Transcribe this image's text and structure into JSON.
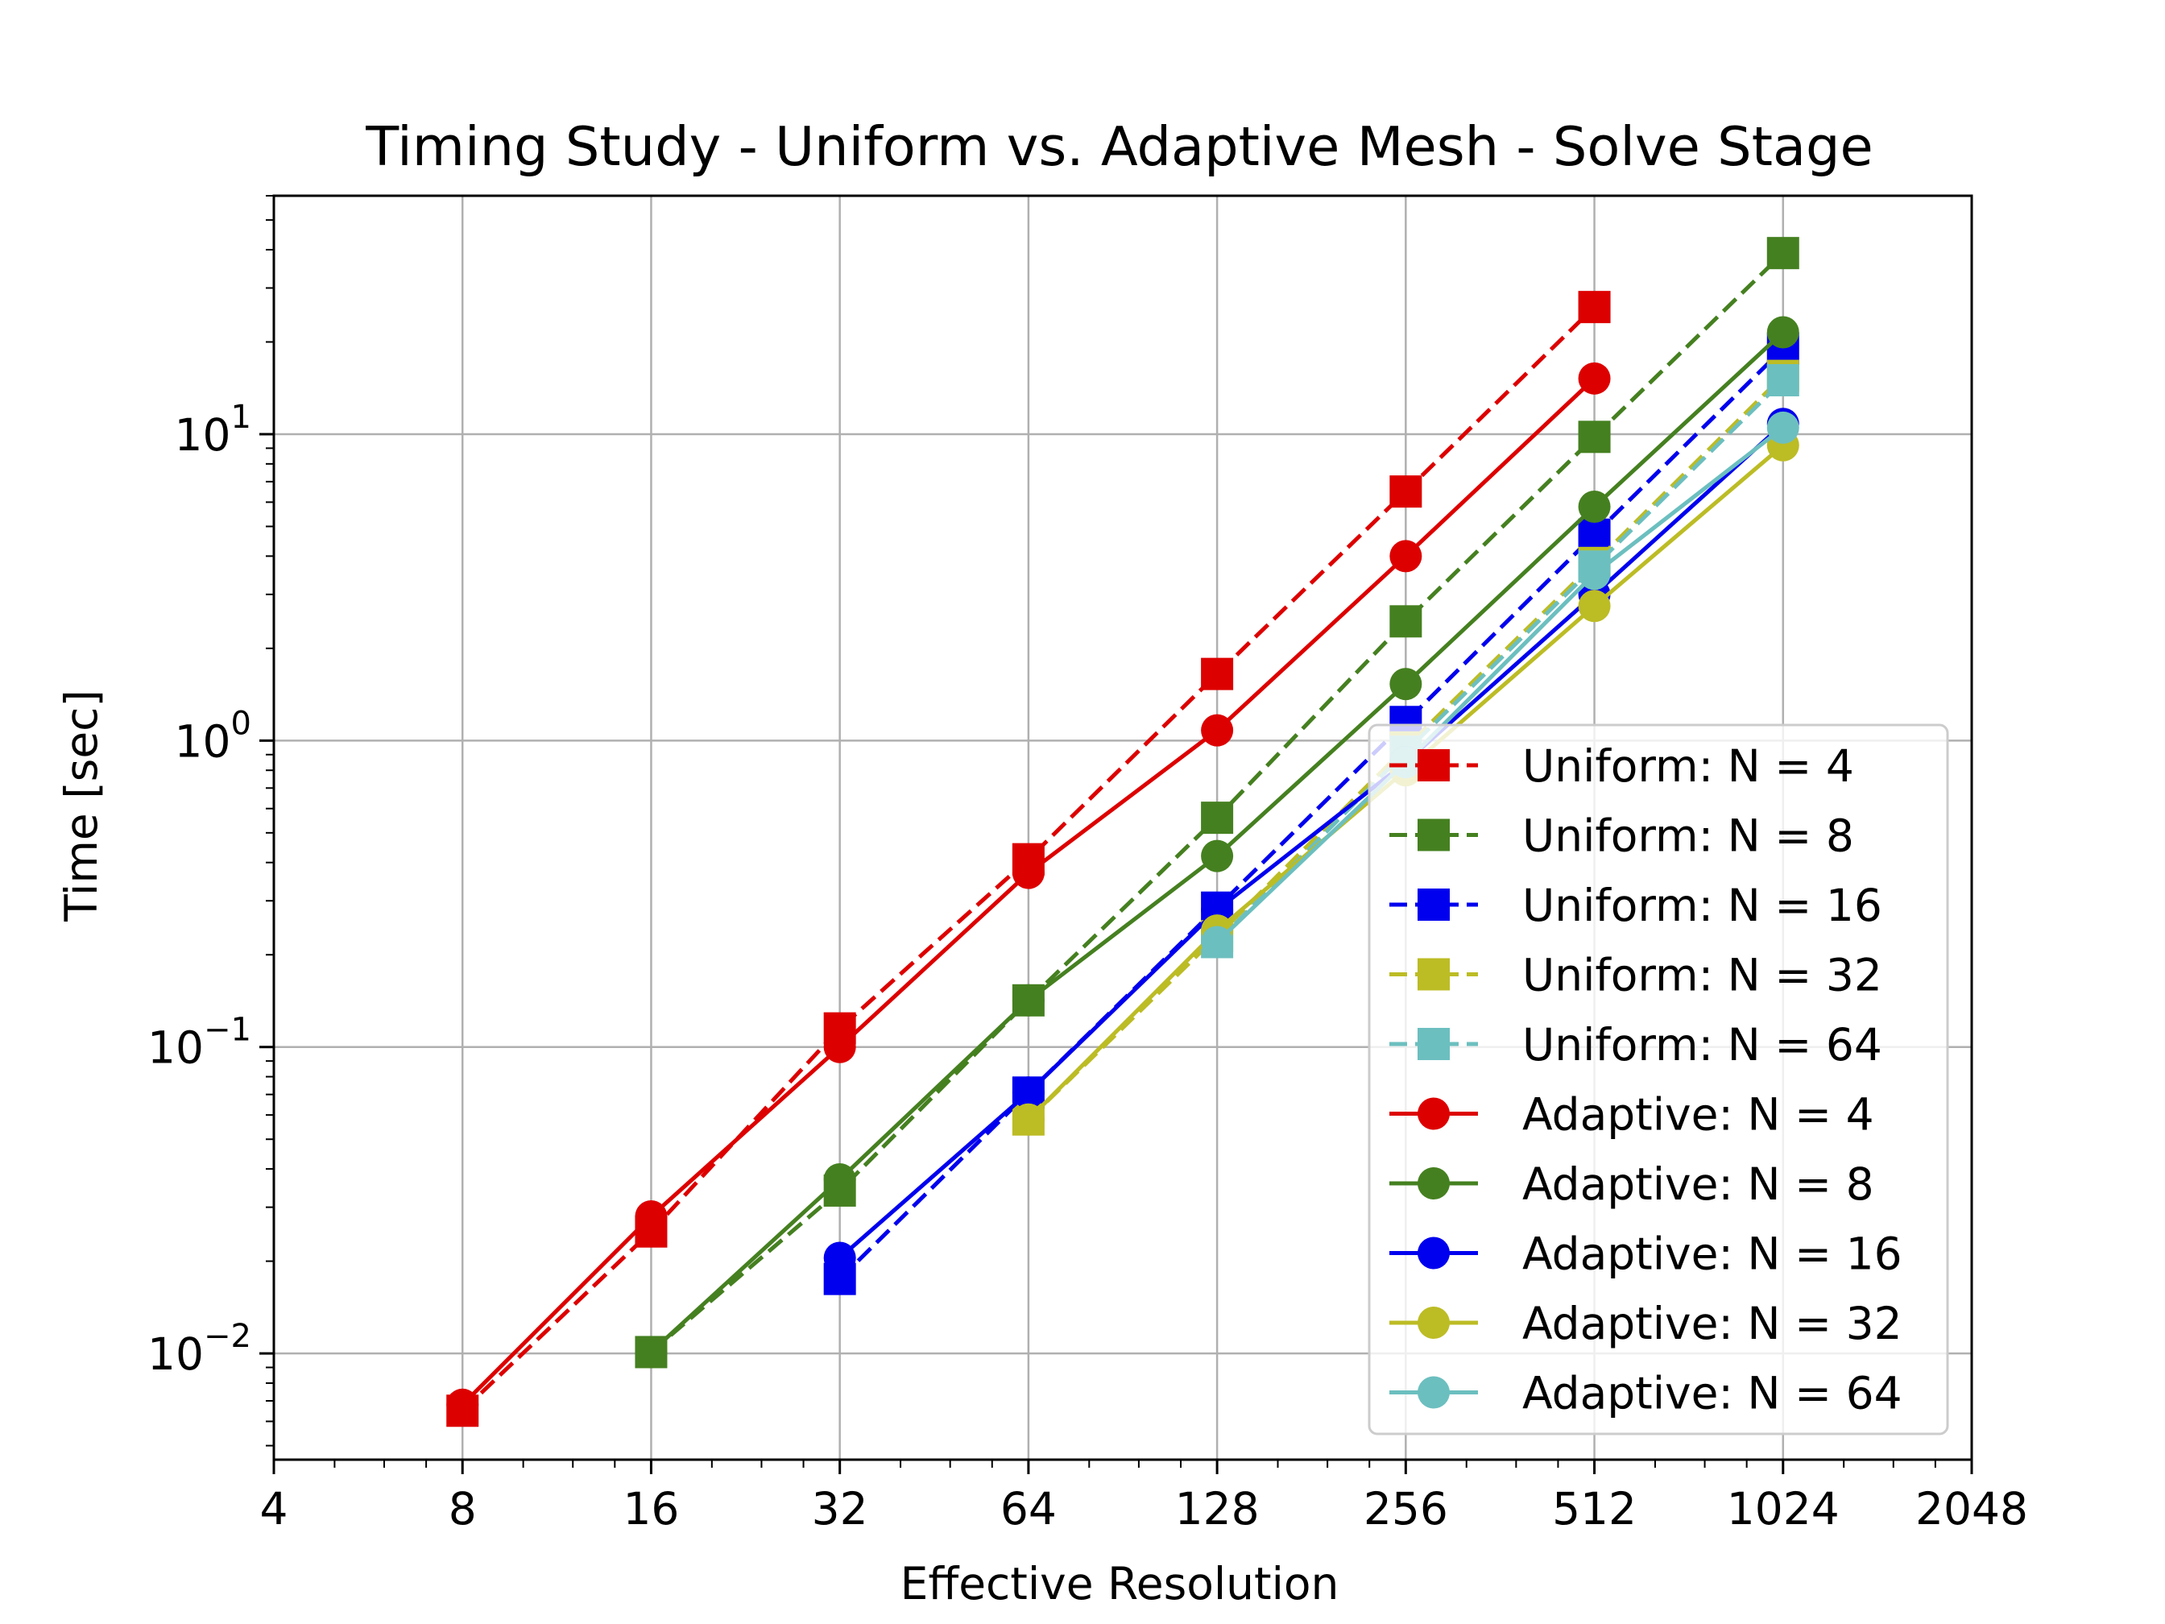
{
  "chart_data": {
    "type": "line",
    "title": "Timing Study - Uniform vs. Adaptive Mesh - Solve Stage",
    "xlabel": "Effective Resolution",
    "ylabel": "Time [sec]",
    "xscale": "log2",
    "yscale": "log10",
    "xlim": [
      4,
      2048
    ],
    "ylim": [
      0.0045,
      60
    ],
    "x_ticks": [
      4,
      8,
      16,
      32,
      64,
      128,
      256,
      512,
      1024,
      2048
    ],
    "x_tick_labels": [
      "4",
      "8",
      "16",
      "32",
      "64",
      "128",
      "256",
      "512",
      "1024",
      "2048"
    ],
    "y_ticks": [
      0.01,
      0.1,
      1,
      10
    ],
    "y_tick_labels": [
      {
        "base": "10",
        "exp": "−2"
      },
      {
        "base": "10",
        "exp": "−1"
      },
      {
        "base": "10",
        "exp": "0"
      },
      {
        "base": "10",
        "exp": "1"
      }
    ],
    "grid": true,
    "legend_position": "lower-right",
    "series": [
      {
        "name": "Uniform: N = 4",
        "color": "#dd0000",
        "style": "dashed",
        "marker": "square",
        "x": [
          8,
          16,
          32,
          64,
          128,
          256,
          512
        ],
        "y": [
          0.0065,
          0.025,
          0.115,
          0.41,
          1.65,
          6.5,
          26
        ]
      },
      {
        "name": "Uniform: N = 8",
        "color": "#458020",
        "style": "dashed",
        "marker": "square",
        "x": [
          16,
          32,
          64,
          128,
          256,
          512,
          1024
        ],
        "y": [
          0.0101,
          0.034,
          0.142,
          0.56,
          2.45,
          9.8,
          39
        ]
      },
      {
        "name": "Uniform: N = 16",
        "color": "#0000ee",
        "style": "dashed",
        "marker": "square",
        "x": [
          32,
          64,
          128,
          256,
          512,
          1024
        ],
        "y": [
          0.0175,
          0.071,
          0.285,
          1.15,
          4.7,
          19
        ]
      },
      {
        "name": "Uniform: N = 32",
        "color": "#bcbc25",
        "style": "dashed",
        "marker": "square",
        "x": [
          64,
          128,
          256,
          512,
          1024
        ],
        "y": [
          0.058,
          0.23,
          0.95,
          3.8,
          15.5
        ]
      },
      {
        "name": "Uniform: N = 64",
        "color": "#6cbfbf",
        "style": "dashed",
        "marker": "square",
        "x": [
          128,
          256,
          512,
          1024
        ],
        "y": [
          0.22,
          0.92,
          3.7,
          15
        ]
      },
      {
        "name": "Adaptive: N = 4",
        "color": "#dd0000",
        "style": "solid",
        "marker": "circle",
        "x": [
          8,
          16,
          32,
          64,
          128,
          256,
          512
        ],
        "y": [
          0.0068,
          0.028,
          0.1,
          0.37,
          1.08,
          4.0,
          15.2
        ]
      },
      {
        "name": "Adaptive: N = 8",
        "color": "#458020",
        "style": "solid",
        "marker": "circle",
        "x": [
          16,
          32,
          64,
          128,
          256,
          512,
          1024
        ],
        "y": [
          0.0101,
          0.037,
          0.142,
          0.42,
          1.53,
          5.8,
          21.5
        ]
      },
      {
        "name": "Adaptive: N = 16",
        "color": "#0000ee",
        "style": "solid",
        "marker": "circle",
        "x": [
          32,
          64,
          128,
          256,
          512,
          1024
        ],
        "y": [
          0.0205,
          0.071,
          0.28,
          0.85,
          3.0,
          10.8
        ]
      },
      {
        "name": "Adaptive: N = 32",
        "color": "#bcbc25",
        "style": "solid",
        "marker": "circle",
        "x": [
          64,
          128,
          256,
          512,
          1024
        ],
        "y": [
          0.058,
          0.24,
          0.8,
          2.75,
          9.2
        ]
      },
      {
        "name": "Adaptive: N = 64",
        "color": "#6cbfbf",
        "style": "solid",
        "marker": "circle",
        "x": [
          128,
          256,
          512,
          1024
        ],
        "y": [
          0.22,
          0.85,
          3.5,
          10.5
        ]
      }
    ]
  }
}
